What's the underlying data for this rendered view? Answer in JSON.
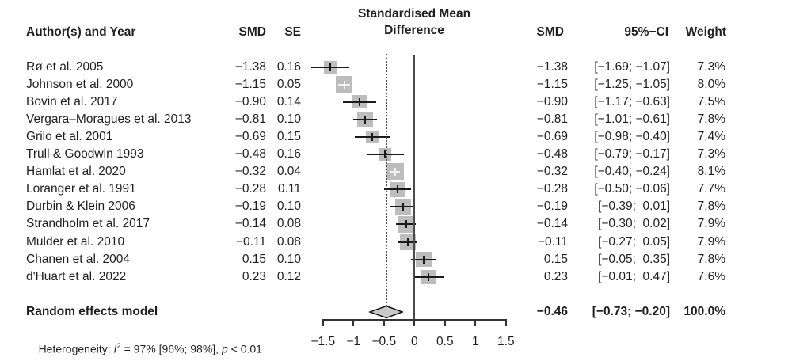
{
  "title": {
    "line1": "Standardised Mean",
    "line2": "Difference"
  },
  "columns": {
    "author": "Author(s) and Year",
    "smd": "SMD",
    "se": "SE",
    "smd_right": "SMD",
    "ci": "95%−CI",
    "weight": "Weight"
  },
  "summary": {
    "label": "Random effects model",
    "smd_text": "−0.46",
    "ci_text": "[−0.73; −0.20]",
    "weight_text": "100.0%",
    "smd": -0.46,
    "lower": -0.73,
    "upper": -0.2
  },
  "heterogeneity": {
    "prefix": "Heterogeneity: ",
    "stat": "I",
    "sup": "2",
    "mid": " = 97% [96%; 98%], ",
    "p": "p",
    "tail": " < 0.01"
  },
  "axis": {
    "ticks": [
      -1.5,
      -1,
      -0.5,
      0,
      0.5,
      1,
      1.5
    ],
    "tick_labels": [
      "−1.5",
      "−1",
      "−0.5",
      "0",
      "0.5",
      "1",
      "1.5"
    ]
  },
  "chart_data": {
    "type": "forest",
    "title": "Standardised Mean Difference",
    "xlim": [
      -1.5,
      1.5
    ],
    "x_ticks": [
      -1.5,
      -1,
      -0.5,
      0,
      0.5,
      1,
      1.5
    ],
    "zero_line": 0,
    "pooled_effect_line": -0.46,
    "legend_position": "none",
    "colors": {
      "square": "#bdbdbd",
      "ci_line": "#1a1a1a",
      "diamond_fill": "#c9c9c9",
      "diamond_stroke": "#000000"
    },
    "studies": [
      {
        "label": "Rø et al. 2005",
        "smd_text": "−1.38",
        "se_text": "0.16",
        "ci_text": "[−1.69; −1.07]",
        "weight_text": "7.3%",
        "smd": -1.38,
        "se": 0.16,
        "lower": -1.69,
        "upper": -1.07,
        "weight": 7.3
      },
      {
        "label": "Johnson et al. 2000",
        "smd_text": "−1.15",
        "se_text": "0.05",
        "ci_text": "[−1.25; −1.05]",
        "weight_text": "8.0%",
        "smd": -1.15,
        "se": 0.05,
        "lower": -1.25,
        "upper": -1.05,
        "weight": 8.0
      },
      {
        "label": "Bovin et al. 2017",
        "smd_text": "−0.90",
        "se_text": "0.14",
        "ci_text": "[−1.17; −0.63]",
        "weight_text": "7.5%",
        "smd": -0.9,
        "se": 0.14,
        "lower": -1.17,
        "upper": -0.63,
        "weight": 7.5
      },
      {
        "label": "Vergara–Moragues et al. 2013",
        "smd_text": "−0.81",
        "se_text": "0.10",
        "ci_text": "[−1.01; −0.61]",
        "weight_text": "7.8%",
        "smd": -0.81,
        "se": 0.1,
        "lower": -1.01,
        "upper": -0.61,
        "weight": 7.8
      },
      {
        "label": "Grilo et al. 2001",
        "smd_text": "−0.69",
        "se_text": "0.15",
        "ci_text": "[−0.98; −0.40]",
        "weight_text": "7.4%",
        "smd": -0.69,
        "se": 0.15,
        "lower": -0.98,
        "upper": -0.4,
        "weight": 7.4
      },
      {
        "label": "Trull & Goodwin 1993",
        "smd_text": "−0.48",
        "se_text": "0.16",
        "ci_text": "[−0.79; −0.17]",
        "weight_text": "7.3%",
        "smd": -0.48,
        "se": 0.16,
        "lower": -0.79,
        "upper": -0.17,
        "weight": 7.3
      },
      {
        "label": "Hamlat et al. 2020",
        "smd_text": "−0.32",
        "se_text": "0.04",
        "ci_text": "[−0.40; −0.24]",
        "weight_text": "8.1%",
        "smd": -0.32,
        "se": 0.04,
        "lower": -0.4,
        "upper": -0.24,
        "weight": 8.1
      },
      {
        "label": "Loranger et al. 1991",
        "smd_text": "−0.28",
        "se_text": "0.11",
        "ci_text": "[−0.50; −0.06]",
        "weight_text": "7.7%",
        "smd": -0.28,
        "se": 0.11,
        "lower": -0.5,
        "upper": -0.06,
        "weight": 7.7
      },
      {
        "label": "Durbin & Klein 2006",
        "smd_text": "−0.19",
        "se_text": "0.10",
        "ci_text": "[−0.39;  0.01]",
        "weight_text": "7.8%",
        "smd": -0.19,
        "se": 0.1,
        "lower": -0.39,
        "upper": 0.01,
        "weight": 7.8
      },
      {
        "label": "Strandholm et al. 2017",
        "smd_text": "−0.14",
        "se_text": "0.08",
        "ci_text": "[−0.30;  0.02]",
        "weight_text": "7.9%",
        "smd": -0.14,
        "se": 0.08,
        "lower": -0.3,
        "upper": 0.02,
        "weight": 7.9
      },
      {
        "label": "Mulder et al. 2010",
        "smd_text": "−0.11",
        "se_text": "0.08",
        "ci_text": "[−0.27;  0.05]",
        "weight_text": "7.9%",
        "smd": -0.11,
        "se": 0.08,
        "lower": -0.27,
        "upper": 0.05,
        "weight": 7.9
      },
      {
        "label": "Chanen et al. 2004",
        "smd_text": "0.15",
        "se_text": "0.10",
        "ci_text": "[−0.05;  0.35]",
        "weight_text": "7.8%",
        "smd": 0.15,
        "se": 0.1,
        "lower": -0.05,
        "upper": 0.35,
        "weight": 7.8
      },
      {
        "label": "d'Huart et al. 2022",
        "smd_text": "0.23",
        "se_text": "0.12",
        "ci_text": "[−0.01;  0.47]",
        "weight_text": "7.6%",
        "smd": 0.23,
        "se": 0.12,
        "lower": -0.01,
        "upper": 0.47,
        "weight": 7.6
      }
    ],
    "summary": {
      "label": "Random effects model",
      "smd": -0.46,
      "lower": -0.73,
      "upper": -0.2,
      "weight": 100.0,
      "i2": "97%",
      "i2_ci": "[96%; 98%]",
      "p": "< 0.01"
    }
  }
}
